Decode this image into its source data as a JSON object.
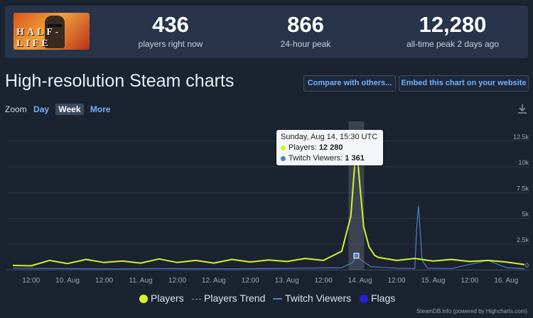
{
  "stats": [
    {
      "value": "436",
      "label": "players right now"
    },
    {
      "value": "866",
      "label": "24-hour peak"
    },
    {
      "value": "12,280",
      "label": "all-time peak 2 days ago"
    }
  ],
  "game_logo_text": "HALF-LIFE",
  "title": "High-resolution Steam charts",
  "buttons": {
    "compare": "Compare with others...",
    "embed": "Embed this chart on your website"
  },
  "zoom": {
    "label": "Zoom",
    "options": [
      "Day",
      "Week",
      "More"
    ],
    "selected": "Week"
  },
  "tooltip": {
    "date": "Sunday, Aug 14, 15:30 UTC",
    "players_label": "Players:",
    "players_value": "12 280",
    "viewers_label": "Twitch Viewers:",
    "viewers_value": "1 361"
  },
  "legend": {
    "players": "Players",
    "trend": "Players Trend",
    "twitch": "Twitch Viewers",
    "flags": "Flags"
  },
  "credit": "SteamDB.info (powered by Highcharts.com)",
  "colors": {
    "players": "#d6f226",
    "twitch": "#4a83c3",
    "flags": "#2a1fd8",
    "accent": "#6fb3ff",
    "background": "#1b2230"
  },
  "chart_data": {
    "type": "line",
    "x_ticks": [
      "12:00",
      "10. Aug",
      "12:00",
      "11. Aug",
      "12:00",
      "12. Aug",
      "12:00",
      "13. Aug",
      "12:00",
      "14. Aug",
      "12:00",
      "15. Aug",
      "12:00",
      "16. Aug"
    ],
    "y_ticks": [
      "0",
      "2.5k",
      "5k",
      "7.5k",
      "10k",
      "12.5k"
    ],
    "ylim": [
      0,
      14000
    ],
    "series": [
      {
        "name": "Players",
        "x": [
          0,
          0.5,
          1,
          1.5,
          2,
          2.5,
          3,
          3.5,
          4,
          4.5,
          5,
          5.5,
          6,
          6.5,
          7,
          7.5,
          8,
          8.5,
          9,
          9.25,
          9.4,
          9.5,
          9.6,
          9.75,
          9.9,
          10,
          10.5,
          11,
          11.5,
          12,
          12.5,
          13,
          13.5,
          14
        ],
        "y": [
          420,
          380,
          900,
          600,
          1000,
          700,
          850,
          650,
          1050,
          700,
          900,
          650,
          1000,
          750,
          950,
          800,
          1100,
          900,
          1800,
          5200,
          12280,
          8000,
          4200,
          2200,
          1400,
          1200,
          900,
          1100,
          850,
          1000,
          800,
          900,
          750,
          500
        ]
      },
      {
        "name": "Twitch Viewers",
        "x": [
          0,
          1,
          2,
          3,
          4,
          5,
          6,
          7,
          8,
          9,
          9.3,
          9.4,
          9.55,
          9.8,
          10.5,
          11,
          11.05,
          11.1,
          11.2,
          11.35,
          12,
          13,
          13.5,
          14
        ],
        "y": [
          150,
          120,
          100,
          80,
          120,
          100,
          90,
          110,
          160,
          200,
          700,
          1361,
          900,
          300,
          150,
          120,
          4000,
          6200,
          900,
          150,
          120,
          900,
          200,
          100
        ]
      }
    ],
    "highlight": {
      "x": 9.4,
      "y": 12280
    }
  }
}
